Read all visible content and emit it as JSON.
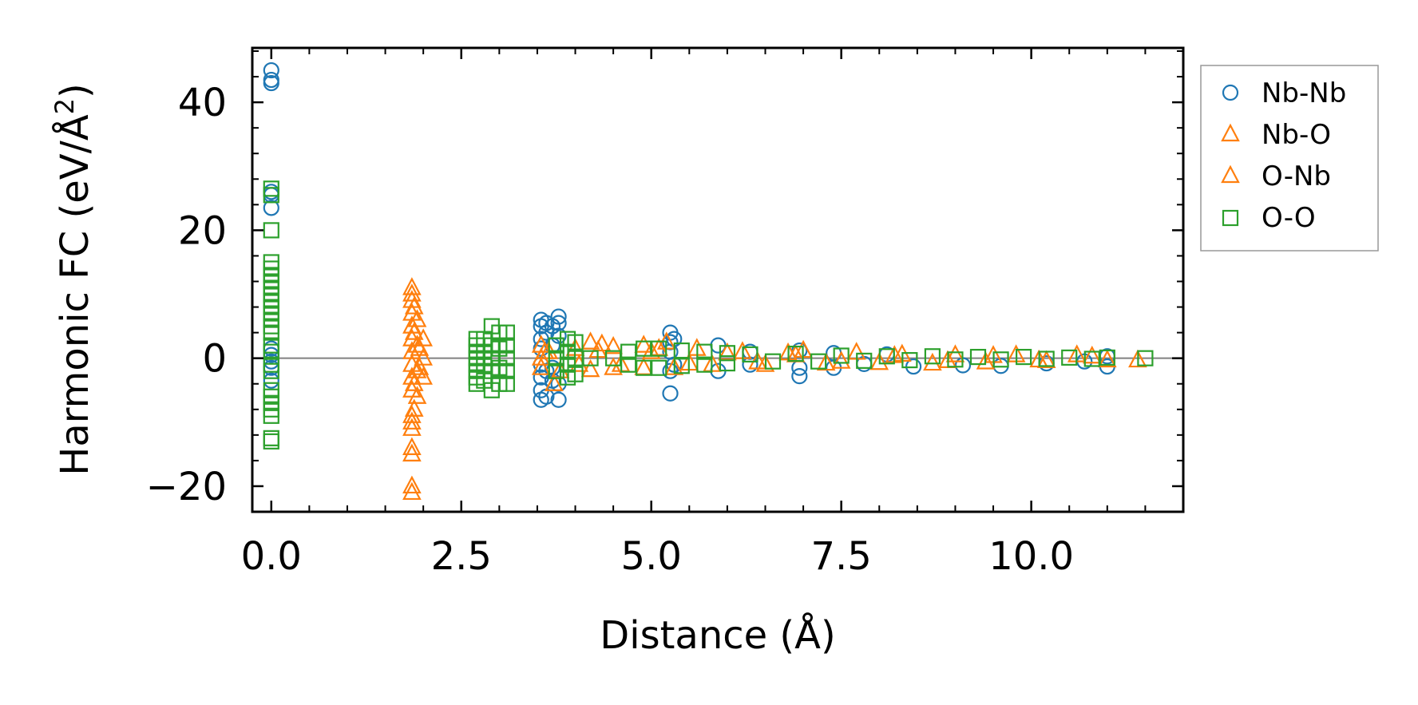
{
  "colors": {
    "nb_nb": "#1f77b4",
    "nb_o": "#ff7f0e",
    "o_nb": "#ff7f0e",
    "o_o": "#2ca02c",
    "zero_line": "#808080"
  },
  "chart_data": {
    "type": "scatter",
    "title": "",
    "xlabel": "Distance (Å)",
    "ylabel_main": "Harmonic FC (eV/Å",
    "ylabel_sup": "2",
    "ylabel_close": ")",
    "xlim": [
      -0.25,
      12.0
    ],
    "ylim": [
      -24,
      48.5
    ],
    "xticks": [
      0,
      2.5,
      5,
      7.5,
      10
    ],
    "xtick_labels": [
      "0.0",
      "2.5",
      "5.0",
      "7.5",
      "10.0"
    ],
    "yticks": [
      -20,
      0,
      20,
      40
    ],
    "ytick_labels": [
      "−20",
      "0",
      "20",
      "40"
    ],
    "legend_position": "outside-top-right",
    "series": [
      {
        "name": "Nb-Nb",
        "marker": "circle",
        "color_key": "nb_nb",
        "points": [
          [
            0,
            45
          ],
          [
            0,
            43.5
          ],
          [
            0,
            43
          ],
          [
            0,
            26
          ],
          [
            0,
            25.5
          ],
          [
            0,
            23.5
          ],
          [
            0,
            1.5
          ],
          [
            0,
            0.5
          ],
          [
            0,
            -0.5
          ],
          [
            0,
            -1.5
          ],
          [
            0,
            -3.5
          ],
          [
            3.55,
            6
          ],
          [
            3.55,
            5
          ],
          [
            3.55,
            3
          ],
          [
            3.55,
            1.5
          ],
          [
            3.55,
            -1
          ],
          [
            3.55,
            -3
          ],
          [
            3.55,
            -5
          ],
          [
            3.55,
            -6.5
          ],
          [
            3.62,
            5.5
          ],
          [
            3.62,
            4
          ],
          [
            3.62,
            -2
          ],
          [
            3.62,
            -6
          ],
          [
            3.7,
            5
          ],
          [
            3.7,
            2
          ],
          [
            3.7,
            -1.5
          ],
          [
            3.7,
            -3.5
          ],
          [
            3.78,
            6.5
          ],
          [
            3.78,
            5.5
          ],
          [
            3.78,
            3.5
          ],
          [
            3.78,
            -4
          ],
          [
            3.78,
            -6.5
          ],
          [
            5.25,
            4
          ],
          [
            5.25,
            2.5
          ],
          [
            5.25,
            1
          ],
          [
            5.25,
            -2
          ],
          [
            5.25,
            -5.5
          ],
          [
            5.3,
            3
          ],
          [
            5.3,
            -1
          ],
          [
            5.88,
            2
          ],
          [
            5.88,
            -2
          ],
          [
            6.3,
            1
          ],
          [
            6.3,
            -1
          ],
          [
            6.95,
            1.2
          ],
          [
            6.95,
            -1.5
          ],
          [
            6.95,
            -2.8
          ],
          [
            7.4,
            -1.5
          ],
          [
            7.4,
            0.8
          ],
          [
            7.8,
            -0.9
          ],
          [
            8.1,
            0.6
          ],
          [
            8.45,
            -1.3
          ],
          [
            9.1,
            -1.1
          ],
          [
            9.6,
            -1.2
          ],
          [
            10.2,
            -0.8
          ],
          [
            10.7,
            -0.5
          ],
          [
            11.0,
            -1.3
          ],
          [
            11.0,
            0.3
          ]
        ]
      },
      {
        "name": "Nb-O",
        "marker": "triangle",
        "color_key": "nb_o",
        "points": [
          [
            1.85,
            11
          ],
          [
            1.85,
            10
          ],
          [
            1.85,
            9
          ],
          [
            1.85,
            7
          ],
          [
            1.85,
            5
          ],
          [
            1.85,
            3
          ],
          [
            1.85,
            1
          ],
          [
            1.85,
            -1
          ],
          [
            1.85,
            -3
          ],
          [
            1.85,
            -5
          ],
          [
            1.85,
            -9
          ],
          [
            1.85,
            -10
          ],
          [
            1.85,
            -11
          ],
          [
            1.85,
            -14
          ],
          [
            1.85,
            -15
          ],
          [
            1.85,
            -20
          ],
          [
            1.85,
            -21
          ],
          [
            1.92,
            6
          ],
          [
            1.92,
            2
          ],
          [
            1.92,
            -2
          ],
          [
            1.92,
            -6
          ],
          [
            2.0,
            3
          ],
          [
            2.0,
            0
          ],
          [
            2.0,
            -3
          ],
          [
            3.55,
            2
          ],
          [
            3.55,
            0
          ],
          [
            3.55,
            -1.5
          ],
          [
            3.65,
            1
          ],
          [
            3.72,
            -4
          ],
          [
            4.0,
            1.5
          ],
          [
            4.2,
            2.5
          ],
          [
            4.2,
            -1.8
          ],
          [
            4.35,
            2.2
          ],
          [
            4.5,
            1.8
          ],
          [
            4.5,
            -1.5
          ],
          [
            4.9,
            2
          ],
          [
            4.9,
            -1.5
          ],
          [
            5.1,
            1.5
          ],
          [
            5.3,
            -1.5
          ],
          [
            5.6,
            1.5
          ],
          [
            5.8,
            -1
          ],
          [
            6.2,
            1
          ],
          [
            6.5,
            -1
          ],
          [
            6.8,
            0.8
          ],
          [
            7.0,
            1.2
          ],
          [
            7.3,
            -0.8
          ],
          [
            7.7,
            0.9
          ],
          [
            8.0,
            -0.7
          ],
          [
            8.3,
            0.6
          ],
          [
            8.7,
            -0.8
          ],
          [
            9.0,
            0.5
          ],
          [
            9.4,
            -0.6
          ],
          [
            9.8,
            0.5
          ],
          [
            10.2,
            -0.4
          ],
          [
            10.6,
            0.5
          ],
          [
            11.0,
            -0.3
          ],
          [
            11.4,
            -0.3
          ]
        ]
      },
      {
        "name": "O-Nb",
        "marker": "triangle",
        "color_key": "o_nb",
        "points": [
          [
            1.88,
            8
          ],
          [
            1.88,
            4
          ],
          [
            1.88,
            -4
          ],
          [
            1.88,
            -8
          ],
          [
            1.95,
            1.5
          ],
          [
            1.95,
            -1.5
          ],
          [
            3.6,
            1
          ],
          [
            3.8,
            -2
          ],
          [
            4.05,
            -1
          ],
          [
            4.3,
            1.2
          ],
          [
            4.6,
            -1
          ],
          [
            5.0,
            1
          ],
          [
            5.2,
            2.5
          ],
          [
            5.5,
            -0.8
          ],
          [
            6.0,
            0.8
          ],
          [
            6.4,
            -0.6
          ],
          [
            6.9,
            0.5
          ],
          [
            7.5,
            -0.5
          ],
          [
            8.2,
            0.4
          ],
          [
            8.9,
            -0.4
          ],
          [
            9.5,
            0.4
          ],
          [
            10.1,
            -0.3
          ],
          [
            10.8,
            0.3
          ]
        ]
      },
      {
        "name": "O-O",
        "marker": "square",
        "color_key": "o_o",
        "points": [
          [
            0,
            26.5
          ],
          [
            0,
            25.5
          ],
          [
            0,
            20
          ],
          [
            0,
            15
          ],
          [
            0,
            14
          ],
          [
            0,
            13
          ],
          [
            0,
            12
          ],
          [
            0,
            11
          ],
          [
            0,
            10
          ],
          [
            0,
            9
          ],
          [
            0,
            8
          ],
          [
            0,
            7
          ],
          [
            0,
            6
          ],
          [
            0,
            5
          ],
          [
            0,
            4
          ],
          [
            0,
            2
          ],
          [
            0,
            1
          ],
          [
            0,
            -1
          ],
          [
            0,
            -2
          ],
          [
            0,
            -5
          ],
          [
            0,
            -6
          ],
          [
            0,
            -7
          ],
          [
            0,
            -8
          ],
          [
            0,
            -9
          ],
          [
            0,
            -12.5
          ],
          [
            0,
            -13
          ],
          [
            2.7,
            3
          ],
          [
            2.7,
            2
          ],
          [
            2.7,
            1
          ],
          [
            2.7,
            0
          ],
          [
            2.7,
            -1
          ],
          [
            2.7,
            -2
          ],
          [
            2.7,
            -3
          ],
          [
            2.7,
            -4
          ],
          [
            2.8,
            3
          ],
          [
            2.8,
            1
          ],
          [
            2.8,
            -1
          ],
          [
            2.8,
            -3.5
          ],
          [
            2.9,
            5
          ],
          [
            2.9,
            2
          ],
          [
            2.9,
            0
          ],
          [
            2.9,
            -2
          ],
          [
            2.9,
            -5
          ],
          [
            3.0,
            4
          ],
          [
            3.0,
            1.5
          ],
          [
            3.0,
            -1.5
          ],
          [
            3.0,
            -4
          ],
          [
            3.1,
            4
          ],
          [
            3.1,
            2
          ],
          [
            3.1,
            0
          ],
          [
            3.1,
            -2
          ],
          [
            3.1,
            -4
          ],
          [
            3.75,
            2
          ],
          [
            3.75,
            0
          ],
          [
            3.75,
            -2
          ],
          [
            3.9,
            3
          ],
          [
            3.9,
            1
          ],
          [
            3.9,
            -1
          ],
          [
            3.9,
            -3
          ],
          [
            4.0,
            2.5
          ],
          [
            4.0,
            0
          ],
          [
            4.0,
            -2.5
          ],
          [
            4.2,
            0
          ],
          [
            4.5,
            0
          ],
          [
            4.7,
            1
          ],
          [
            4.7,
            -1
          ],
          [
            4.9,
            1.5
          ],
          [
            4.9,
            -1.5
          ],
          [
            5.1,
            1.5
          ],
          [
            5.1,
            -1.5
          ],
          [
            5.4,
            1.2
          ],
          [
            5.4,
            -1.2
          ],
          [
            5.7,
            1
          ],
          [
            5.7,
            -1
          ],
          [
            6.0,
            0.8
          ],
          [
            6.0,
            -0.8
          ],
          [
            6.3,
            0.6
          ],
          [
            6.6,
            -0.5
          ],
          [
            6.9,
            0.7
          ],
          [
            7.2,
            -0.5
          ],
          [
            7.5,
            0.4
          ],
          [
            7.8,
            -0.4
          ],
          [
            8.1,
            0.3
          ],
          [
            8.4,
            -0.3
          ],
          [
            8.7,
            0.3
          ],
          [
            9.0,
            -0.2
          ],
          [
            9.3,
            0.2
          ],
          [
            9.6,
            -0.2
          ],
          [
            9.9,
            0.2
          ],
          [
            10.2,
            -0.1
          ],
          [
            10.5,
            0.1
          ],
          [
            10.8,
            -0.1
          ],
          [
            11.0,
            0.1
          ],
          [
            11.5,
            0
          ]
        ]
      }
    ]
  }
}
